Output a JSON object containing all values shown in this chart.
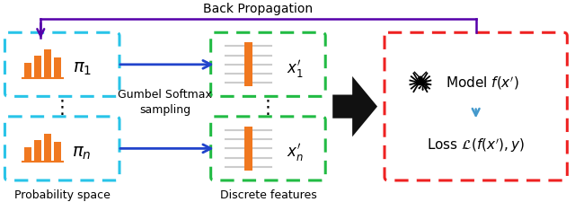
{
  "bg_color": "#ffffff",
  "fig_width": 6.4,
  "fig_height": 2.26,
  "dpi": 100,
  "back_prop_text": "Back Propagation",
  "gumbel_text1": "Gumbel Softmax",
  "gumbel_text2": "sampling",
  "prob_space_text": "Probability space",
  "discrete_text": "Discrete features",
  "model_text": "Model $f(x')$",
  "loss_text": "Loss $\\mathcal{L}(f(x'), y)$",
  "pi1_text": "$\\pi_1$",
  "pi_n_text": "$\\pi_n$",
  "x1_text": "$x_1'$",
  "xn_text": "$x_n'$",
  "bar_color": "#f07820",
  "box1_color": "#29c4e8",
  "box2_color": "#22bb44",
  "box3_color": "#ee2222",
  "arrow_color": "#2244cc",
  "backprop_arrow_color": "#5500aa",
  "big_arrow_color": "#111111",
  "vertical_arrow_color": "#4499cc"
}
